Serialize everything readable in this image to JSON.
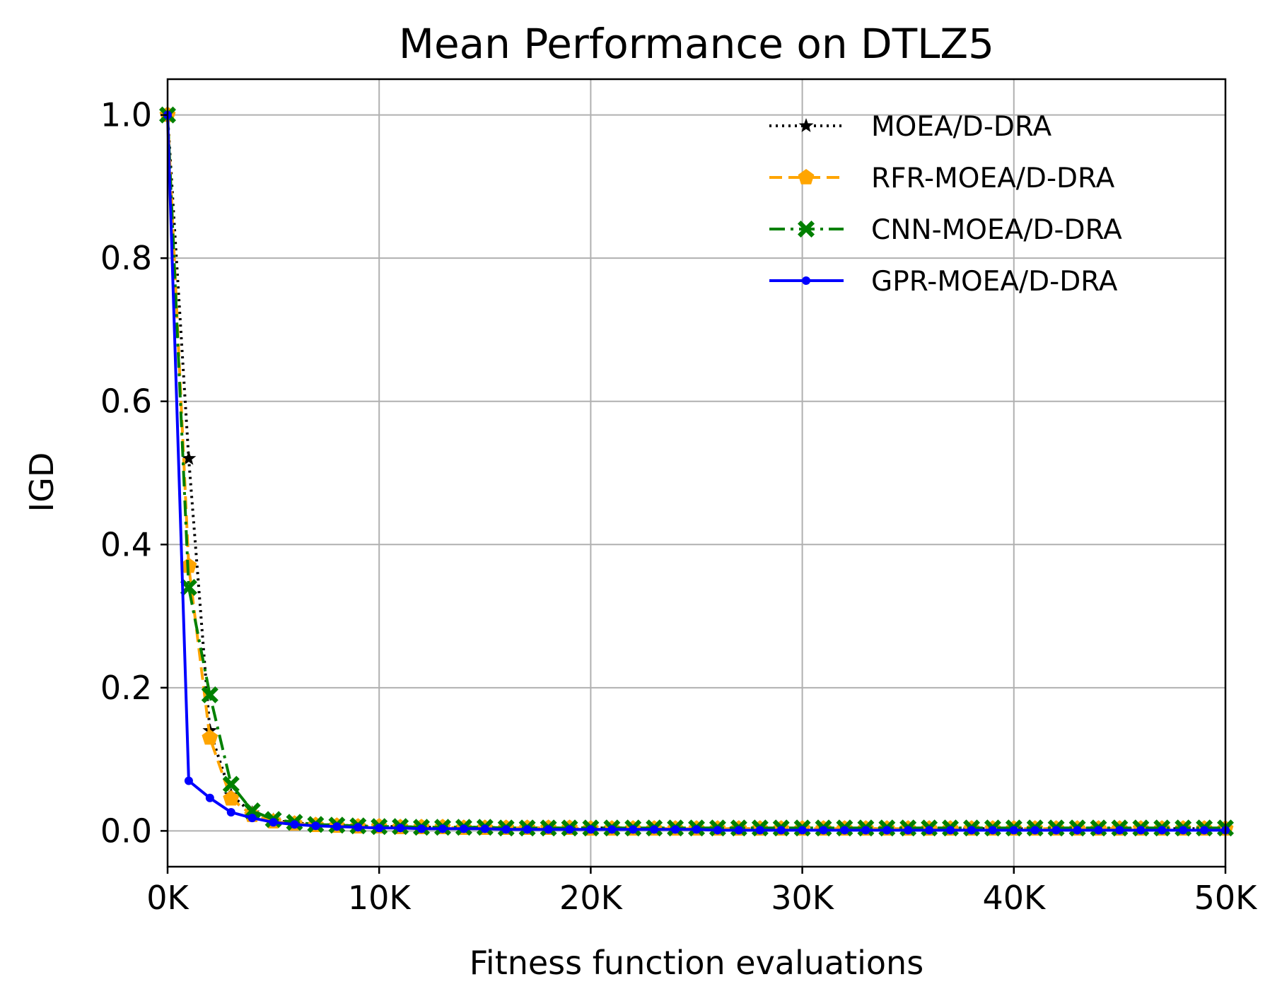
{
  "chart_data": {
    "type": "line",
    "title": "Mean Performance on DTLZ5",
    "xlabel": "Fitness function evaluations",
    "ylabel": "IGD",
    "xlim": [
      0,
      50000
    ],
    "ylim": [
      -0.05,
      1.05
    ],
    "grid": true,
    "legend_position": "top-right",
    "x_ticks": [
      0,
      10000,
      20000,
      30000,
      40000,
      50000
    ],
    "x_tick_labels": [
      "0K",
      "10K",
      "20K",
      "30K",
      "40K",
      "50K"
    ],
    "y_ticks": [
      0.0,
      0.2,
      0.4,
      0.6,
      0.8,
      1.0
    ],
    "y_tick_labels": [
      "0.0",
      "0.2",
      "0.4",
      "0.6",
      "0.8",
      "1.0"
    ],
    "x": [
      0,
      1000,
      2000,
      3000,
      4000,
      5000,
      6000,
      7000,
      8000,
      9000,
      10000,
      11000,
      12000,
      13000,
      14000,
      15000,
      16000,
      17000,
      18000,
      19000,
      20000,
      21000,
      22000,
      23000,
      24000,
      25000,
      26000,
      27000,
      28000,
      29000,
      30000,
      31000,
      32000,
      33000,
      34000,
      35000,
      36000,
      37000,
      38000,
      39000,
      40000,
      41000,
      42000,
      43000,
      44000,
      45000,
      46000,
      47000,
      48000,
      49000,
      50000
    ],
    "series": [
      {
        "name": "MOEA/D-DRA",
        "color": "#000000",
        "line_style": "dotted",
        "marker": "star",
        "values": [
          1.0,
          0.52,
          0.14,
          0.05,
          0.025,
          0.015,
          0.011,
          0.009,
          0.008,
          0.007,
          0.006,
          0.006,
          0.005,
          0.005,
          0.005,
          0.005,
          0.004,
          0.004,
          0.004,
          0.004,
          0.004,
          0.004,
          0.004,
          0.003,
          0.003,
          0.003,
          0.003,
          0.003,
          0.003,
          0.003,
          0.003,
          0.003,
          0.003,
          0.003,
          0.003,
          0.003,
          0.003,
          0.003,
          0.003,
          0.003,
          0.003,
          0.003,
          0.003,
          0.003,
          0.003,
          0.003,
          0.003,
          0.003,
          0.003,
          0.003,
          0.003
        ]
      },
      {
        "name": "RFR-MOEA/D-DRA",
        "color": "#ffa500",
        "line_style": "dashed",
        "marker": "pentagon",
        "values": [
          1.0,
          0.37,
          0.13,
          0.045,
          0.022,
          0.013,
          0.01,
          0.008,
          0.007,
          0.006,
          0.006,
          0.005,
          0.005,
          0.005,
          0.004,
          0.004,
          0.004,
          0.004,
          0.004,
          0.004,
          0.003,
          0.003,
          0.003,
          0.003,
          0.003,
          0.003,
          0.003,
          0.003,
          0.003,
          0.003,
          0.003,
          0.003,
          0.003,
          0.003,
          0.003,
          0.003,
          0.003,
          0.003,
          0.003,
          0.003,
          0.003,
          0.003,
          0.003,
          0.003,
          0.003,
          0.003,
          0.003,
          0.003,
          0.003,
          0.003,
          0.003
        ]
      },
      {
        "name": "CNN-MOEA/D-DRA",
        "color": "#008000",
        "line_style": "dashdot",
        "marker": "x",
        "values": [
          1.0,
          0.34,
          0.19,
          0.065,
          0.028,
          0.016,
          0.012,
          0.009,
          0.008,
          0.007,
          0.006,
          0.006,
          0.005,
          0.005,
          0.005,
          0.005,
          0.004,
          0.004,
          0.004,
          0.004,
          0.004,
          0.004,
          0.004,
          0.004,
          0.004,
          0.004,
          0.004,
          0.004,
          0.004,
          0.004,
          0.004,
          0.004,
          0.004,
          0.004,
          0.004,
          0.004,
          0.004,
          0.004,
          0.004,
          0.004,
          0.004,
          0.004,
          0.004,
          0.004,
          0.004,
          0.004,
          0.004,
          0.004,
          0.004,
          0.004,
          0.004
        ]
      },
      {
        "name": "GPR-MOEA/D-DRA",
        "color": "#0000ff",
        "line_style": "solid",
        "marker": "dot",
        "values": [
          1.0,
          0.07,
          0.046,
          0.026,
          0.018,
          0.012,
          0.009,
          0.007,
          0.006,
          0.005,
          0.004,
          0.004,
          0.003,
          0.003,
          0.003,
          0.003,
          0.002,
          0.002,
          0.002,
          0.002,
          0.002,
          0.002,
          0.002,
          0.002,
          0.002,
          0.002,
          0.001,
          0.001,
          0.001,
          0.001,
          0.001,
          0.001,
          0.001,
          0.001,
          0.001,
          0.001,
          0.001,
          0.001,
          0.001,
          0.001,
          0.001,
          0.001,
          0.001,
          0.001,
          0.001,
          0.001,
          0.001,
          0.001,
          0.001,
          0.001,
          0.001
        ]
      }
    ]
  }
}
